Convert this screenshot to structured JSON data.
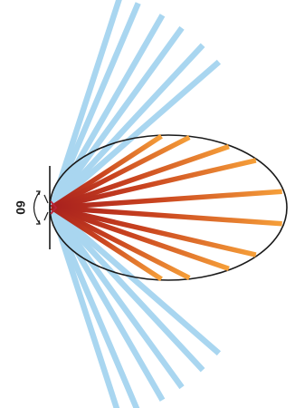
{
  "diagram": {
    "angle_label": "60",
    "colors": {
      "background": "#ffffff",
      "outline": "#1a1a1a",
      "beam_light": "#a9d6f0",
      "beam_warm_inner": "#a8201e",
      "beam_warm_outer": "#f6a039",
      "emitter": "#b8243a"
    },
    "beams": [
      {
        "group": "light",
        "angle_deg": -72
      },
      {
        "group": "light",
        "angle_deg": -67
      },
      {
        "group": "light",
        "angle_deg": -60
      },
      {
        "group": "light",
        "angle_deg": -54
      },
      {
        "group": "light",
        "angle_deg": -47
      },
      {
        "group": "light",
        "angle_deg": -41
      },
      {
        "group": "warm",
        "angle_deg": -33
      },
      {
        "group": "warm",
        "angle_deg": -27
      },
      {
        "group": "warm",
        "angle_deg": -19
      },
      {
        "group": "warm",
        "angle_deg": -13
      },
      {
        "group": "warm",
        "angle_deg": -4
      },
      {
        "group": "warm",
        "angle_deg": 4
      },
      {
        "group": "warm",
        "angle_deg": 13
      },
      {
        "group": "warm",
        "angle_deg": 19
      },
      {
        "group": "warm",
        "angle_deg": 27
      },
      {
        "group": "warm",
        "angle_deg": 33
      },
      {
        "group": "light",
        "angle_deg": 41
      },
      {
        "group": "light",
        "angle_deg": 47
      },
      {
        "group": "light",
        "angle_deg": 54
      },
      {
        "group": "light",
        "angle_deg": 60
      },
      {
        "group": "light",
        "angle_deg": 67
      },
      {
        "group": "light",
        "angle_deg": 72
      }
    ]
  }
}
